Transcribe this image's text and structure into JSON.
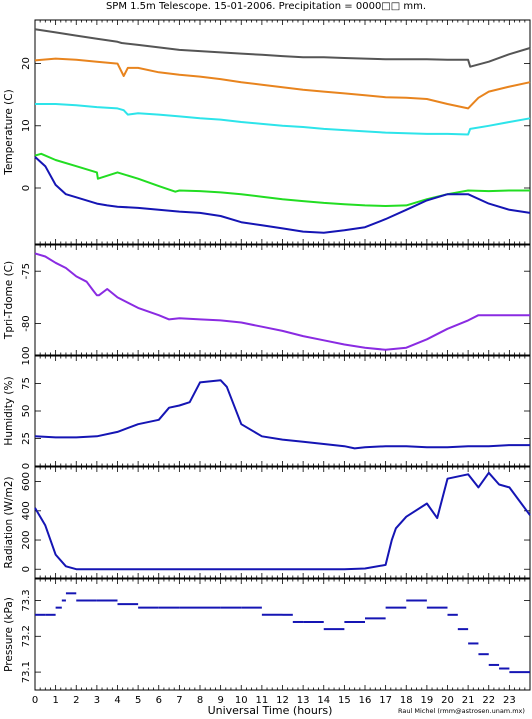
{
  "title": "SPM 1.5m Telescope. 15-01-2006. Precipitation = 0000□□ mm.",
  "xlabel": "Universal Time (hours)",
  "credit": "Raul Michel (rmm@astrosen.unam.mx)",
  "x_ticks": [
    "0",
    "1",
    "2",
    "3",
    "4",
    "5",
    "6",
    "7",
    "8",
    "9",
    "10",
    "11",
    "12",
    "13",
    "14",
    "15",
    "16",
    "17",
    "18",
    "19",
    "20",
    "21",
    "22",
    "23"
  ],
  "colors": {
    "dark_gray": "#555555",
    "orange": "#e8841e",
    "cyan": "#2de4ea",
    "green": "#22dd22",
    "blue": "#1515b4",
    "purple": "#8a2be2"
  },
  "chart_data": [
    {
      "type": "line",
      "ylabel": "Temperature (C)",
      "xlim": [
        0,
        24
      ],
      "ylim": [
        -9,
        27
      ],
      "yticks": [
        0,
        10,
        20
      ],
      "series": [
        {
          "color": "dark_gray",
          "x": [
            0,
            1,
            2,
            3,
            4,
            4.2,
            5,
            6,
            7,
            8,
            9,
            10,
            11,
            12,
            13,
            14,
            15,
            16,
            17,
            18,
            19,
            20,
            21,
            21.1,
            22,
            23,
            24
          ],
          "y": [
            25.5,
            25,
            24.5,
            24,
            23.5,
            23.3,
            23,
            22.6,
            22.2,
            22,
            21.8,
            21.6,
            21.4,
            21.2,
            21,
            21,
            20.9,
            20.8,
            20.7,
            20.7,
            20.7,
            20.6,
            20.6,
            19.5,
            20.3,
            21.5,
            22.5
          ]
        },
        {
          "color": "orange",
          "x": [
            0,
            1,
            2,
            3,
            4,
            4.3,
            4.5,
            5,
            6,
            7,
            8,
            9,
            10,
            11,
            12,
            13,
            14,
            15,
            16,
            17,
            18,
            19,
            20,
            21,
            21.5,
            22,
            23,
            24
          ],
          "y": [
            20.5,
            20.8,
            20.6,
            20.3,
            20,
            18,
            19.3,
            19.3,
            18.6,
            18.2,
            17.9,
            17.5,
            17,
            16.6,
            16.2,
            15.8,
            15.5,
            15.2,
            14.9,
            14.6,
            14.5,
            14.3,
            13.5,
            12.8,
            14.5,
            15.5,
            16.3,
            17
          ]
        },
        {
          "color": "cyan",
          "x": [
            0,
            1,
            2,
            3,
            4,
            4.3,
            4.5,
            5,
            6,
            7,
            8,
            9,
            10,
            11,
            12,
            13,
            14,
            15,
            16,
            17,
            18,
            19,
            20,
            21,
            21.1,
            22,
            23,
            24
          ],
          "y": [
            13.5,
            13.5,
            13.3,
            13,
            12.8,
            12.5,
            11.8,
            12,
            11.8,
            11.5,
            11.2,
            11,
            10.6,
            10.3,
            10,
            9.8,
            9.5,
            9.3,
            9.1,
            8.9,
            8.8,
            8.7,
            8.7,
            8.6,
            9.5,
            10,
            10.6,
            11.2
          ]
        },
        {
          "color": "green",
          "x": [
            0,
            0.3,
            1,
            2,
            3,
            3.05,
            4,
            5,
            6,
            6.8,
            7,
            8,
            9,
            10,
            11,
            12,
            13,
            14,
            15,
            16,
            17,
            18,
            19,
            20,
            21,
            22,
            23,
            24
          ],
          "y": [
            5.2,
            5.5,
            4.5,
            3.5,
            2.5,
            1.5,
            2.5,
            1.5,
            0.3,
            -0.6,
            -0.4,
            -0.5,
            -0.7,
            -1,
            -1.4,
            -1.8,
            -2.1,
            -2.4,
            -2.6,
            -2.8,
            -2.9,
            -2.8,
            -1.8,
            -1,
            -0.4,
            -0.5,
            -0.4,
            -0.4
          ]
        },
        {
          "color": "blue",
          "x": [
            0,
            0.5,
            1,
            1.5,
            2,
            2.5,
            3,
            3.5,
            4,
            5,
            6,
            7,
            8,
            9,
            10,
            11,
            12,
            13,
            14,
            15,
            16,
            17,
            18,
            19,
            20,
            21,
            22,
            23,
            24
          ],
          "y": [
            5,
            3.5,
            0.5,
            -1,
            -1.5,
            -2,
            -2.5,
            -2.8,
            -3,
            -3.2,
            -3.5,
            -3.8,
            -4,
            -4.5,
            -5.5,
            -6,
            -6.5,
            -7,
            -7.2,
            -6.8,
            -6.3,
            -5,
            -3.5,
            -2,
            -1,
            -1,
            -2.5,
            -3.5,
            -4
          ]
        }
      ]
    },
    {
      "type": "line",
      "ylabel": "Tpri-Tdome (C)",
      "xlim": [
        0,
        24
      ],
      "ylim": [
        -83,
        -72.5
      ],
      "yticks": [
        -75,
        -80
      ],
      "series": [
        {
          "color": "purple",
          "x": [
            0,
            0.5,
            1,
            1.5,
            2,
            2.5,
            2.8,
            3,
            3.1,
            3.5,
            4,
            5,
            6,
            6.5,
            7,
            8,
            9,
            10,
            11,
            12,
            13,
            14,
            15,
            16,
            17,
            18,
            19,
            20,
            21,
            21.5,
            22,
            23,
            24
          ],
          "y": [
            -73.3,
            -73.6,
            -74.2,
            -74.7,
            -75.5,
            -76,
            -76.8,
            -77.3,
            -77.3,
            -76.7,
            -77.5,
            -78.5,
            -79.2,
            -79.6,
            -79.5,
            -79.6,
            -79.7,
            -79.9,
            -80.3,
            -80.7,
            -81.2,
            -81.6,
            -82,
            -82.3,
            -82.5,
            -82.3,
            -81.5,
            -80.5,
            -79.7,
            -79.2,
            -79.2,
            -79.2,
            -79.2
          ]
        }
      ]
    },
    {
      "type": "line",
      "ylabel": "Humidity (%)",
      "xlim": [
        0,
        24
      ],
      "ylim": [
        0,
        100
      ],
      "yticks": [
        0,
        25,
        50,
        75,
        100
      ],
      "series": [
        {
          "color": "blue",
          "x": [
            0,
            1,
            2,
            3,
            4,
            5,
            6,
            6.5,
            7,
            7.5,
            8,
            9,
            9.3,
            10,
            11,
            12,
            13,
            14,
            15,
            15.5,
            16,
            17,
            18,
            19,
            20,
            21,
            22,
            23,
            24
          ],
          "y": [
            27,
            26,
            26,
            27,
            31,
            38,
            42,
            53,
            55,
            58,
            76,
            78,
            72,
            38,
            27,
            24,
            22,
            20,
            18,
            16,
            17,
            18,
            18,
            17,
            17,
            18,
            18,
            19,
            19
          ]
        }
      ]
    },
    {
      "type": "line",
      "ylabel": "Radiation (W/m2)",
      "xlim": [
        0,
        24
      ],
      "ylim": [
        -60,
        700
      ],
      "yticks": [
        0,
        200,
        400,
        600
      ],
      "series": [
        {
          "color": "blue",
          "x": [
            0,
            0.5,
            1,
            1.5,
            2,
            3,
            5,
            10,
            15,
            16,
            17,
            17.3,
            17.5,
            18,
            19,
            19.5,
            20,
            21,
            21.5,
            22,
            22.5,
            23,
            24
          ],
          "y": [
            420,
            300,
            100,
            20,
            0,
            0,
            0,
            0,
            0,
            5,
            30,
            200,
            280,
            360,
            450,
            350,
            620,
            650,
            560,
            660,
            580,
            560,
            370
          ]
        }
      ]
    },
    {
      "type": "scatter",
      "ylabel": "Pressure (kPa)",
      "xlim": [
        0,
        24
      ],
      "ylim": [
        73.05,
        73.36
      ],
      "yticks": [
        73.3,
        73.2,
        73.1
      ],
      "series": [
        {
          "color": "blue",
          "x": [
            0,
            0.5,
            1,
            1.3,
            1.5,
            2,
            3,
            4,
            5,
            6,
            7,
            8,
            9,
            10,
            11,
            12,
            12.5,
            13,
            14,
            15,
            16,
            17,
            18,
            19,
            20,
            20.5,
            21,
            21.5,
            22,
            22.5,
            23,
            24
          ],
          "y": [
            73.26,
            73.26,
            73.28,
            73.3,
            73.32,
            73.3,
            73.3,
            73.29,
            73.28,
            73.28,
            73.28,
            73.28,
            73.28,
            73.28,
            73.26,
            73.26,
            73.24,
            73.24,
            73.22,
            73.24,
            73.25,
            73.28,
            73.3,
            73.28,
            73.26,
            73.22,
            73.18,
            73.15,
            73.12,
            73.11,
            73.1,
            73.1
          ]
        }
      ]
    }
  ]
}
